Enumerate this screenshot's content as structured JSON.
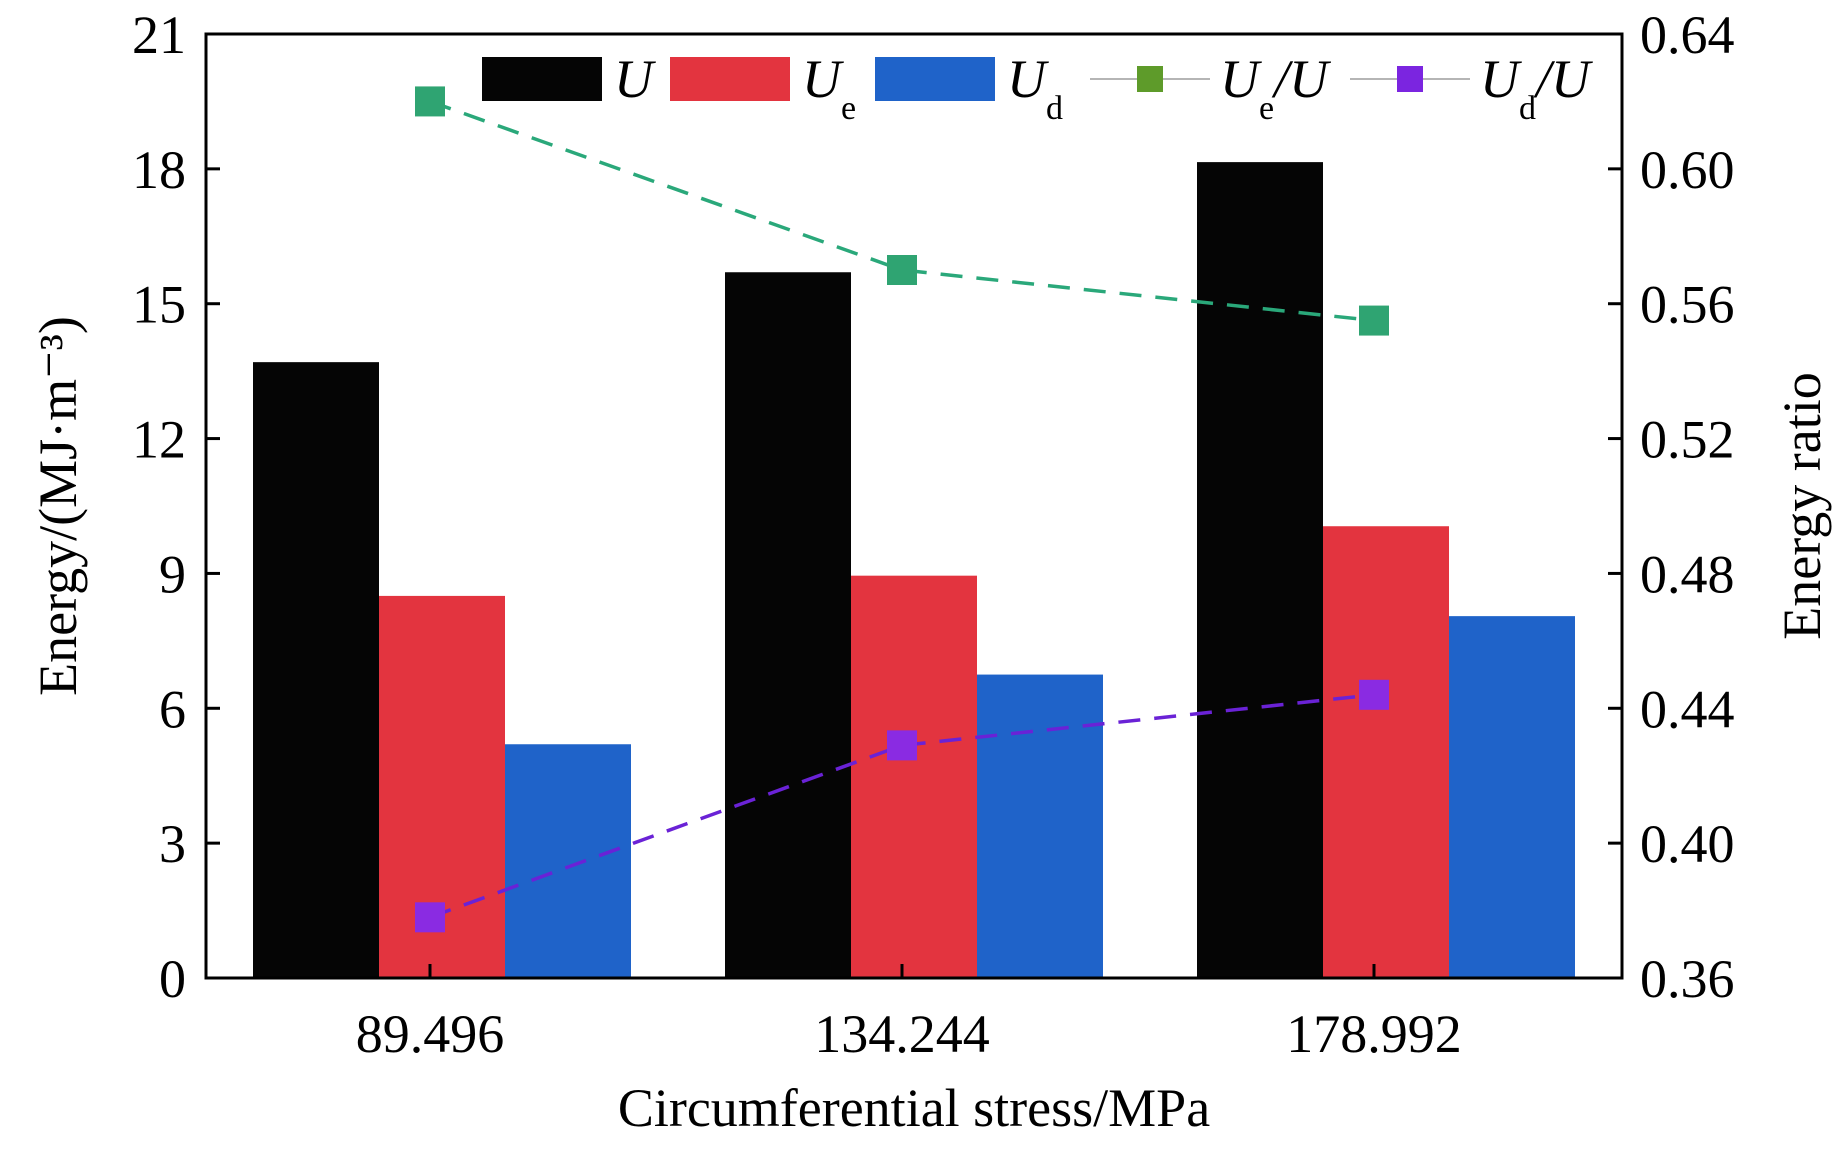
{
  "chart_data": {
    "type": "bar",
    "categories": [
      "89.496",
      "134.244",
      "178.992"
    ],
    "xlabel": "Circumferential stress/MPa",
    "ylabel": "Energy/(MJ·m⁻³)",
    "ylabel_right": "Energy ratio",
    "ylim": [
      0,
      21
    ],
    "y_ticks": [
      0,
      3,
      6,
      9,
      12,
      15,
      18,
      21
    ],
    "ylim_right": [
      0.36,
      0.64
    ],
    "y_ticks_right": [
      "0.36",
      "0.40",
      "0.44",
      "0.48",
      "0.52",
      "0.56",
      "0.60",
      "0.64"
    ],
    "legend_position": "top",
    "grid": false,
    "series": [
      {
        "name": "U",
        "type": "bar",
        "color": "#050505",
        "values": [
          13.7,
          15.7,
          18.15
        ]
      },
      {
        "name": "Ue",
        "type": "bar",
        "color": "#e3343f",
        "values": [
          8.5,
          8.95,
          10.05
        ]
      },
      {
        "name": "Ud",
        "type": "bar",
        "color": "#1f63c9",
        "values": [
          5.2,
          6.75,
          8.05
        ]
      },
      {
        "name": "Ue/U",
        "type": "line",
        "axis": "right",
        "color": "#2aa87a",
        "marker_color": "#2fa472",
        "legend_marker_color": "#5e9b2a",
        "values": [
          0.62,
          0.57,
          0.555
        ]
      },
      {
        "name": "Ud/U",
        "type": "line",
        "axis": "right",
        "color": "#6a22d6",
        "marker_color": "#8a2be2",
        "legend_marker_color": "#7b25e0",
        "values": [
          0.378,
          0.429,
          0.444
        ]
      }
    ],
    "legend": [
      {
        "base": "U",
        "sub": "",
        "suffix": ""
      },
      {
        "base": "U",
        "sub": "e",
        "suffix": ""
      },
      {
        "base": "U",
        "sub": "d",
        "suffix": ""
      },
      {
        "base": "U",
        "sub": "e",
        "suffix": "/U"
      },
      {
        "base": "U",
        "sub": "d",
        "suffix": "/U"
      }
    ]
  }
}
